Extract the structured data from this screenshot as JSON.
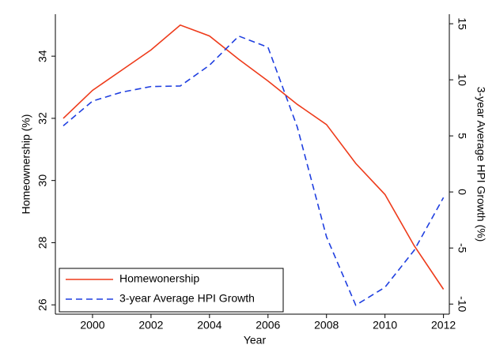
{
  "chart_data": {
    "type": "line",
    "x_label": "Year",
    "y_label": "Homeownership (%)",
    "y2_label": "3-year Average HPI Growth (%)",
    "x": [
      1999,
      2000,
      2001,
      2002,
      2003,
      2004,
      2005,
      2006,
      2007,
      2008,
      2009,
      2010,
      2011,
      2012
    ],
    "series": [
      {
        "name": "Homewonership",
        "color": "#ee3b1b",
        "dash": false,
        "values": [
          32.0,
          32.9,
          33.55,
          34.2,
          35.0,
          34.65,
          33.9,
          33.2,
          32.45,
          31.8,
          30.55,
          29.55,
          27.9,
          26.5
        ]
      },
      {
        "name": "3-year Average HPI Growth",
        "color": "#1f3fe0",
        "dash": true,
        "axis": "y2",
        "values": [
          5.9,
          8.1,
          8.9,
          9.4,
          9.45,
          11.3,
          13.9,
          12.9,
          5.8,
          -4.0,
          -10.1,
          -8.5,
          -5.2,
          -0.5
        ]
      }
    ],
    "xlim": [
      1998.73,
      2012.2
    ],
    "xticks": [
      2000,
      2002,
      2004,
      2006,
      2008,
      2010,
      2012
    ],
    "ylim": [
      25.7,
      35.35
    ],
    "yticks": [
      26,
      28,
      30,
      32,
      34
    ],
    "y2lim": [
      -10.9,
      15.85
    ],
    "y2ticks": [
      -10,
      -5,
      0,
      5,
      10,
      15
    ],
    "legend": "lower left"
  }
}
